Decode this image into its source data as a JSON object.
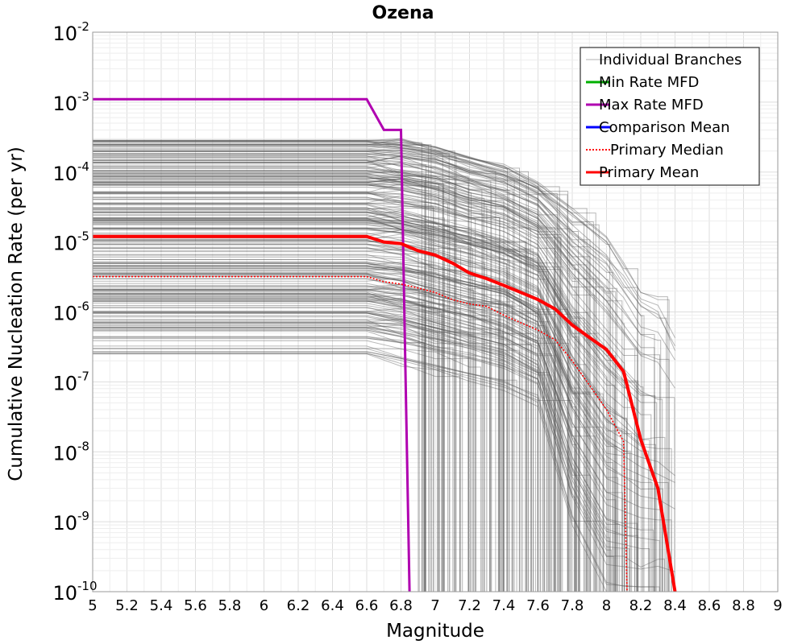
{
  "chart_data": {
    "type": "line",
    "title": "Ozena",
    "xlabel": "Magnitude",
    "ylabel": "Cumulative Nucleation Rate (per yr)",
    "xlim": [
      5,
      9
    ],
    "ylim": [
      1e-10,
      0.01
    ],
    "yscale": "log",
    "grid": true,
    "legend_position": "top-right",
    "x_ticks": [
      "5",
      "5.2",
      "5.4",
      "5.6",
      "5.8",
      "6",
      "6.2",
      "6.4",
      "6.6",
      "6.8",
      "7",
      "7.2",
      "7.4",
      "7.6",
      "7.8",
      "8",
      "8.2",
      "8.4",
      "8.6",
      "8.8",
      "9"
    ],
    "y_ticks": [
      {
        "value": 0.01,
        "base": "10",
        "exp": "-2"
      },
      {
        "value": 0.001,
        "base": "10",
        "exp": "-3"
      },
      {
        "value": 0.0001,
        "base": "10",
        "exp": "-4"
      },
      {
        "value": 1e-05,
        "base": "10",
        "exp": "-5"
      },
      {
        "value": 1e-06,
        "base": "10",
        "exp": "-6"
      },
      {
        "value": 1e-07,
        "base": "10",
        "exp": "-7"
      },
      {
        "value": 1e-08,
        "base": "10",
        "exp": "-8"
      },
      {
        "value": 1e-09,
        "base": "10",
        "exp": "-9"
      },
      {
        "value": 1e-10,
        "base": "10",
        "exp": "-10"
      }
    ],
    "series": [
      {
        "name": "Individual Branches",
        "color": "#555555",
        "style": "solid",
        "x": [
          5,
          6.6,
          6.8,
          7.0,
          7.2,
          7.4,
          7.6,
          7.8,
          8.0,
          8.1,
          8.2,
          8.3,
          8.4
        ],
        "values_low": [
          2.5e-07,
          2.5e-07,
          2e-07,
          1.5e-07,
          1.2e-07,
          9e-08,
          5e-08,
          1e-09,
          1e-10,
          1e-10,
          1e-10,
          1e-10,
          1e-10
        ],
        "values_high": [
          0.0003,
          0.0003,
          0.00028,
          0.00023,
          0.00016,
          0.00012,
          7e-05,
          3e-05,
          1.2e-05,
          5e-06,
          2e-06,
          1.5e-06,
          5e-07
        ]
      },
      {
        "name": "Min Rate MFD",
        "color": "#00b000",
        "style": "solid",
        "x": [],
        "values": []
      },
      {
        "name": "Max Rate MFD",
        "color": "#b000b0",
        "style": "solid",
        "x": [
          5,
          6.6,
          6.7,
          6.8,
          6.85
        ],
        "values": [
          0.0011,
          0.0011,
          0.0004,
          0.0004,
          1e-10
        ]
      },
      {
        "name": "Comparison Mean",
        "color": "#0000ff",
        "style": "solid",
        "x": [],
        "values": []
      },
      {
        "name": "Primary Median",
        "color": "#ff0000",
        "style": "dotted",
        "x": [
          5,
          6.6,
          6.7,
          6.8,
          6.9,
          7.0,
          7.1,
          7.2,
          7.3,
          7.4,
          7.5,
          7.6,
          7.7,
          7.8,
          7.9,
          8.0,
          8.1,
          8.12
        ],
        "values": [
          3.2e-06,
          3.2e-06,
          2.7e-06,
          2.5e-06,
          2.2e-06,
          1.9e-06,
          1.5e-06,
          1.3e-06,
          1.2e-06,
          9e-07,
          7e-07,
          5.5e-07,
          4e-07,
          2e-07,
          9e-08,
          4e-08,
          1.4e-08,
          1e-10
        ]
      },
      {
        "name": "Primary Mean",
        "color": "#ff0000",
        "style": "solid",
        "x": [
          5,
          6.6,
          6.7,
          6.8,
          6.9,
          7.0,
          7.1,
          7.2,
          7.3,
          7.4,
          7.5,
          7.6,
          7.7,
          7.8,
          7.9,
          8.0,
          8.1,
          8.2,
          8.3,
          8.4
        ],
        "values": [
          1.2e-05,
          1.2e-05,
          1e-05,
          9.5e-06,
          7.5e-06,
          6.5e-06,
          5e-06,
          3.6e-06,
          3e-06,
          2.4e-06,
          1.9e-06,
          1.5e-06,
          1.1e-06,
          6.5e-07,
          4.3e-07,
          2.9e-07,
          1.4e-07,
          1.5e-08,
          3e-09,
          1e-10
        ]
      }
    ]
  }
}
